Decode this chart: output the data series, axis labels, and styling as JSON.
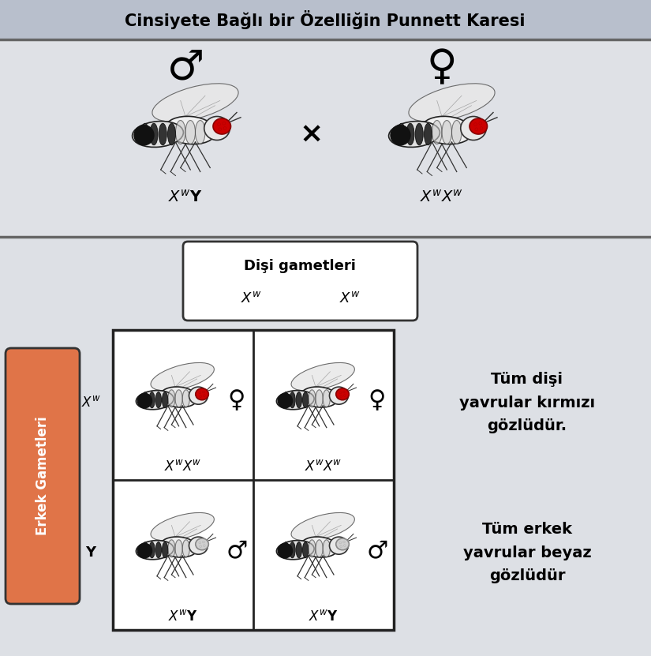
{
  "title": "Cinsiyete Bağlı bir Özelliğin Punnett Karesi",
  "title_fontsize": 15,
  "title_bg": "#b8bfcc",
  "bg_top": "#dfe1e6",
  "bg_bottom": "#dde0e5",
  "male_label": "♂",
  "female_label": "♀",
  "disi_gametleri": "Dişi gametleri",
  "erkek_gametleri": "Erkek Gametleri",
  "erkek_bg": "#e07448",
  "desc_female": "Tüm dişi\nyavrular kırmızı\ngözlüdür.",
  "desc_male": "Tüm erkek\nyavrular beyaz\ngözlüdür",
  "cell_border": "#222222",
  "cross_symbol": "×",
  "male_symbol": "♂",
  "female_symbol": "♀"
}
